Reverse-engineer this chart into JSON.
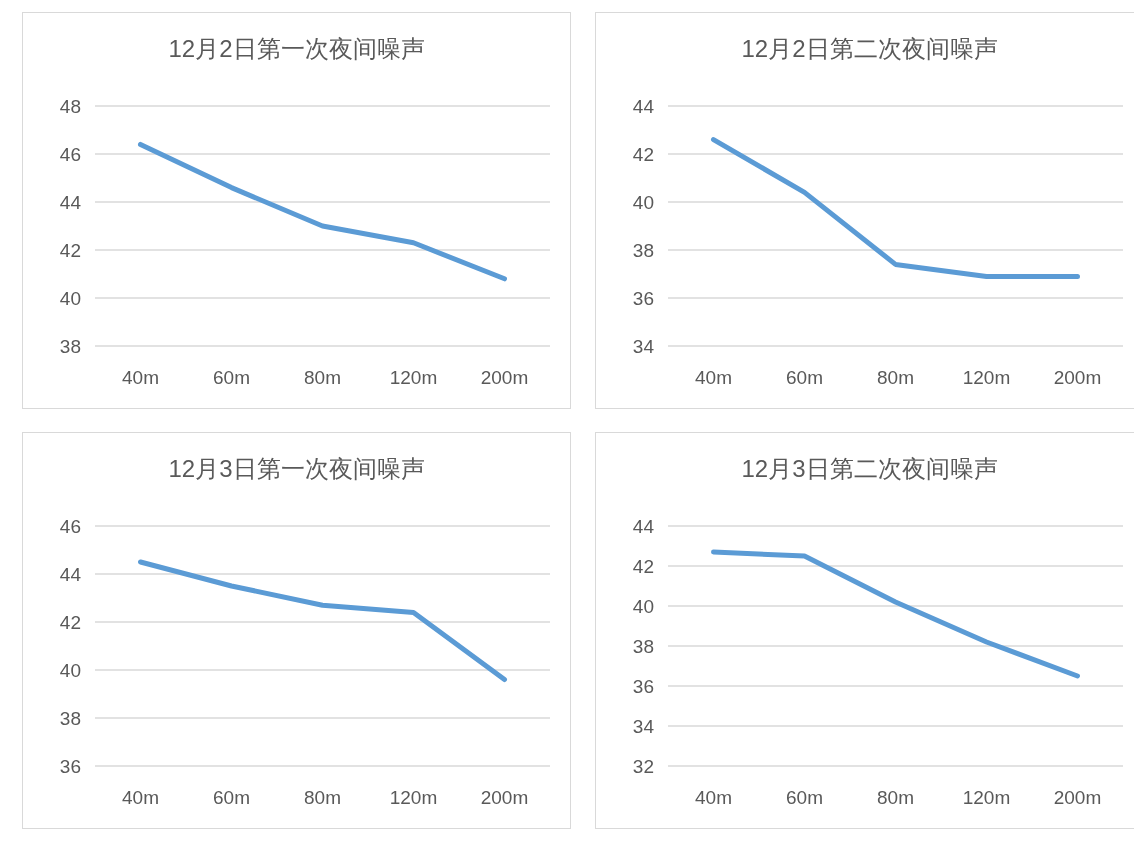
{
  "chart_data": [
    {
      "type": "line",
      "title": "12月2日第一次夜间噪声",
      "categories": [
        "40m",
        "60m",
        "80m",
        "120m",
        "200m"
      ],
      "values": [
        46.4,
        44.6,
        43.0,
        42.3,
        40.8
      ],
      "color": "#5b9bd5",
      "ylim": [
        38,
        48
      ],
      "yticks": [
        38,
        40,
        42,
        44,
        46,
        48
      ],
      "grid": "y"
    },
    {
      "type": "line",
      "title": "12月2日第二次夜间噪声",
      "categories": [
        "40m",
        "60m",
        "80m",
        "120m",
        "200m"
      ],
      "values": [
        42.6,
        40.4,
        37.4,
        36.9,
        36.9
      ],
      "color": "#5b9bd5",
      "ylim": [
        34,
        44
      ],
      "yticks": [
        34,
        36,
        38,
        40,
        42,
        44
      ],
      "grid": "y"
    },
    {
      "type": "line",
      "title": "12月3日第一次夜间噪声",
      "categories": [
        "40m",
        "60m",
        "80m",
        "120m",
        "200m"
      ],
      "values": [
        44.5,
        43.5,
        42.7,
        42.4,
        39.6
      ],
      "color": "#5b9bd5",
      "ylim": [
        36,
        46
      ],
      "yticks": [
        36,
        38,
        40,
        42,
        44,
        46
      ],
      "grid": "y"
    },
    {
      "type": "line",
      "title": "12月3日第二次夜间噪声",
      "categories": [
        "40m",
        "60m",
        "80m",
        "120m",
        "200m"
      ],
      "values": [
        42.7,
        42.5,
        40.2,
        38.2,
        36.5
      ],
      "color": "#5b9bd5",
      "ylim": [
        32,
        44
      ],
      "yticks": [
        32,
        34,
        36,
        38,
        40,
        42,
        44
      ],
      "grid": "y"
    }
  ]
}
